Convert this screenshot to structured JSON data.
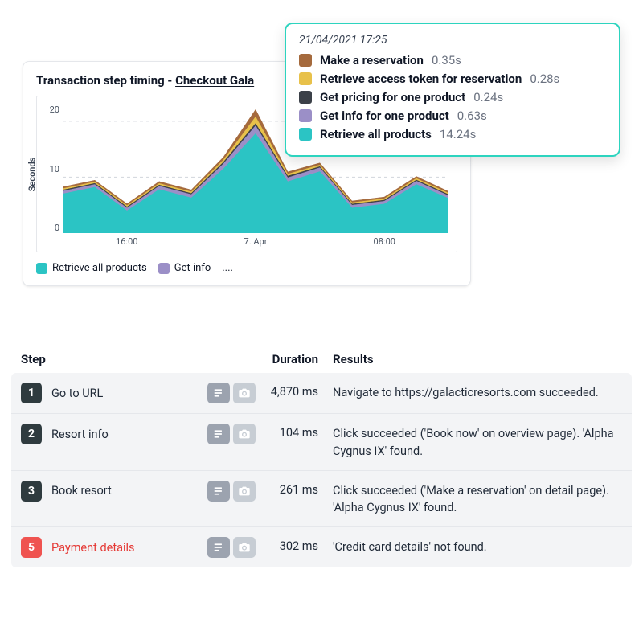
{
  "card": {
    "title_prefix": "Transaction step timing - ",
    "title_link": "Checkout Gala"
  },
  "chart": {
    "type": "area",
    "ylabel": "Seconds",
    "ylim": [
      0,
      23
    ],
    "yticks": [
      20,
      10,
      0
    ],
    "grid_color": "#d1d5db",
    "background_color": "#ffffff",
    "xticks": [
      "16:00",
      "7. Apr",
      "08:00"
    ],
    "x_count": 13,
    "series": [
      {
        "name": "Retrieve all products",
        "color": "#2bc4c4",
        "values": [
          7.0,
          8.2,
          4.0,
          7.8,
          6.3,
          11.5,
          17.8,
          9.2,
          11.0,
          4.5,
          5.2,
          8.7,
          6.2
        ]
      },
      {
        "name": "Get info for one product",
        "color": "#9b8fc7",
        "values": [
          0.5,
          0.5,
          0.5,
          0.6,
          0.6,
          0.9,
          1.4,
          0.7,
          0.7,
          0.5,
          0.5,
          0.6,
          0.5
        ]
      },
      {
        "name": "Get pricing for one product",
        "color": "#3b4048",
        "values": [
          0.2,
          0.2,
          0.2,
          0.2,
          0.2,
          0.3,
          0.4,
          0.3,
          0.2,
          0.2,
          0.2,
          0.2,
          0.2
        ]
      },
      {
        "name": "Retrieve access token for reservation",
        "color": "#e8c14a",
        "values": [
          0.25,
          0.25,
          0.25,
          0.28,
          0.28,
          0.4,
          1.2,
          0.35,
          0.3,
          0.25,
          0.25,
          0.28,
          0.25
        ]
      },
      {
        "name": "Make a reservation",
        "color": "#a56a3d",
        "values": [
          0.3,
          0.3,
          0.3,
          0.35,
          0.35,
          0.5,
          1.3,
          0.4,
          0.35,
          0.3,
          0.3,
          0.35,
          0.3
        ]
      }
    ],
    "legend_items": [
      {
        "color": "#2bc4c4",
        "label": "Retrieve all products"
      },
      {
        "color": "#9b8fc7",
        "label": "Get info"
      }
    ],
    "legend_more": "...."
  },
  "tooltip": {
    "timestamp": "21/04/2021 17:25",
    "rows": [
      {
        "color": "#a56a3d",
        "label": "Make a reservation",
        "value": "0.35s"
      },
      {
        "color": "#e8c14a",
        "label": "Retrieve access token for reservation",
        "value": "0.28s"
      },
      {
        "color": "#3b4048",
        "label": "Get pricing for one product",
        "value": "0.24s"
      },
      {
        "color": "#9b8fc7",
        "label": "Get info for one product",
        "value": "0.63s"
      },
      {
        "color": "#2bc4c4",
        "label": "Retrieve all products",
        "value": "14.24s"
      }
    ]
  },
  "table": {
    "headers": {
      "step": "Step",
      "duration": "Duration",
      "results": "Results"
    },
    "rows": [
      {
        "num": "1",
        "name": "Go to URL",
        "duration": "4,870 ms",
        "result": "Navigate to https://galacticresorts.com succeeded.",
        "error": false
      },
      {
        "num": "2",
        "name": "Resort info",
        "duration": "104 ms",
        "result": "Click succeeded ('Book now' on overview page). 'Alpha Cygnus IX' found.",
        "error": false
      },
      {
        "num": "3",
        "name": "Book resort",
        "duration": "261 ms",
        "result": "Click succeeded ('Make a reservation' on detail page). 'Alpha Cygnus IX' found.",
        "error": false
      },
      {
        "num": "5",
        "name": "Payment details",
        "duration": "302 ms",
        "result": "'Credit card details' not found.",
        "error": true
      }
    ]
  }
}
